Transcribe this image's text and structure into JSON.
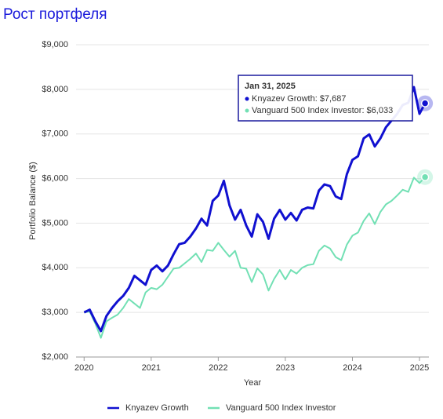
{
  "chart_data": {
    "type": "line",
    "title": "Рост портфеля",
    "x_label": "Year",
    "y_label": "Portfolio Balance ($)",
    "x": [
      2020,
      2020.083,
      2020.167,
      2020.25,
      2020.333,
      2020.417,
      2020.5,
      2020.583,
      2020.667,
      2020.75,
      2020.833,
      2020.917,
      2021,
      2021.083,
      2021.167,
      2021.25,
      2021.333,
      2021.417,
      2021.5,
      2021.583,
      2021.667,
      2021.75,
      2021.833,
      2021.917,
      2022,
      2022.083,
      2022.167,
      2022.25,
      2022.333,
      2022.417,
      2022.5,
      2022.583,
      2022.667,
      2022.75,
      2022.833,
      2022.917,
      2023,
      2023.083,
      2023.167,
      2023.25,
      2023.333,
      2023.417,
      2023.5,
      2023.583,
      2023.667,
      2023.75,
      2023.833,
      2023.917,
      2024,
      2024.083,
      2024.167,
      2024.25,
      2024.333,
      2024.417,
      2024.5,
      2024.583,
      2024.667,
      2024.75,
      2024.833,
      2024.917,
      2025,
      2025.083
    ],
    "series": [
      {
        "name": "Knyazev Growth",
        "color": "#1010d0",
        "values": [
          3000,
          3060,
          2800,
          2580,
          2920,
          3100,
          3250,
          3370,
          3550,
          3820,
          3720,
          3620,
          3950,
          4050,
          3920,
          4050,
          4300,
          4530,
          4560,
          4700,
          4880,
          5100,
          4950,
          5500,
          5620,
          5950,
          5400,
          5080,
          5300,
          4950,
          4700,
          5200,
          5030,
          4650,
          5100,
          5300,
          5080,
          5230,
          5060,
          5300,
          5350,
          5330,
          5730,
          5870,
          5830,
          5600,
          5540,
          6100,
          6420,
          6500,
          6900,
          6990,
          6720,
          6900,
          7150,
          7300,
          7450,
          7650,
          7700,
          8050,
          7450,
          7687
        ]
      },
      {
        "name": "Vanguard 500 Index Investor",
        "color": "#72e0b4",
        "values": [
          3000,
          3020,
          2750,
          2430,
          2800,
          2880,
          2950,
          3100,
          3300,
          3200,
          3100,
          3450,
          3550,
          3520,
          3620,
          3800,
          3980,
          4000,
          4100,
          4200,
          4320,
          4130,
          4400,
          4380,
          4560,
          4400,
          4250,
          4380,
          4000,
          3980,
          3680,
          3990,
          3850,
          3490,
          3750,
          3950,
          3740,
          3950,
          3870,
          4000,
          4060,
          4080,
          4380,
          4500,
          4430,
          4240,
          4170,
          4520,
          4720,
          4790,
          5050,
          5220,
          4980,
          5250,
          5420,
          5500,
          5620,
          5750,
          5700,
          6020,
          5900,
          6033
        ]
      }
    ],
    "xlim": [
      2019.88,
      2025.14
    ],
    "xticks": [
      2020,
      2021,
      2022,
      2023,
      2024,
      2025
    ],
    "ylim": [
      2000,
      9000
    ],
    "yticks": [
      {
        "value": 2000,
        "label": "$2,000"
      },
      {
        "value": 3000,
        "label": "$3,000"
      },
      {
        "value": 4000,
        "label": "$4,000"
      },
      {
        "value": 5000,
        "label": "$5,000"
      },
      {
        "value": 6000,
        "label": "$6,000"
      },
      {
        "value": 7000,
        "label": "$7,000"
      },
      {
        "value": 8000,
        "label": "$8,000"
      },
      {
        "value": 9000,
        "label": "$9,000"
      }
    ],
    "grid": true,
    "legend": "bottom",
    "tooltip": {
      "title": "Jan 31, 2025",
      "entries": [
        "Knyazev Growth: $7,687",
        "Vanguard 500 Index Investor: $6,033"
      ]
    }
  }
}
